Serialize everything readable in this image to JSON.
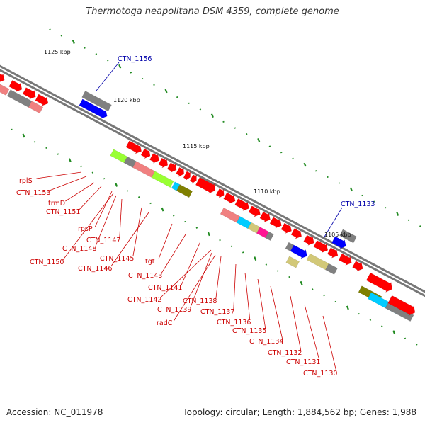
{
  "title": "Thermotoga neapolitana DSM 4359, complete genome",
  "accession": "Accession: NC_011978",
  "stats": "Topology: circular; Length: 1,884,562 bp; Genes: 1,988",
  "scale_labels": [
    "1125 kbp",
    "1120 kbp",
    "1115 kbp",
    "1110 kbp",
    "1105 kbp"
  ],
  "gene_labels_red": [
    "rplS",
    "CTN_1153",
    "trmD",
    "CTN_1151",
    "rpsP",
    "CTN_1147",
    "CTN_1148",
    "CTN_1150",
    "CTN_1145",
    "CTN_1146",
    "tgt",
    "CTN_1143",
    "CTN_1141",
    "CTN_1142",
    "CTN_1138",
    "CTN_1139",
    "radC",
    "CTN_1137",
    "CTN_1136",
    "CTN_1135",
    "CTN_1134",
    "CTN_1132",
    "CTN_1131",
    "CTN_1130"
  ],
  "gene_labels_blue": [
    "CTN_1156",
    "CTN_1133"
  ],
  "colors": {
    "cds": "#ff0000",
    "cds_light": "#f08080",
    "blue": "#0000ff",
    "gray": "#808080",
    "lime": "#99ff33",
    "cyan": "#00ccff",
    "olive": "#808000",
    "khaki": "#d2c878",
    "magenta": "#ff1493",
    "tick": "#228b22",
    "label_red": "#cc0000",
    "label_blue": "#0000aa"
  }
}
